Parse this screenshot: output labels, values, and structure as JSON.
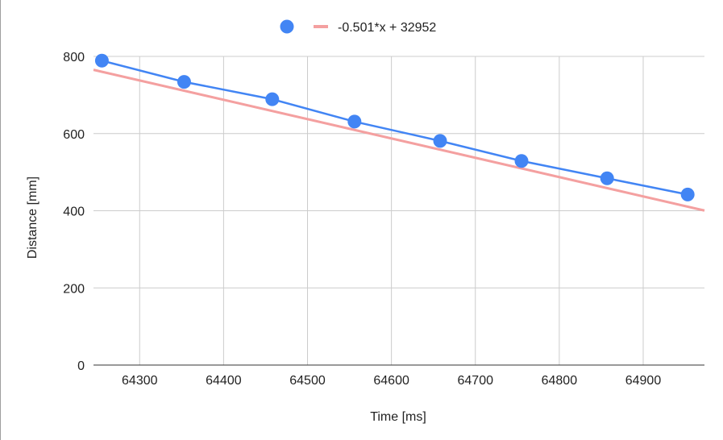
{
  "chart_data": {
    "type": "scatter",
    "title": "",
    "xlabel": "Time [ms]",
    "ylabel": "Distance [mm]",
    "xlim": [
      64245,
      64973
    ],
    "ylim": [
      0,
      800
    ],
    "x_ticks": [
      "64300",
      "64400",
      "64500",
      "64600",
      "64700",
      "64800",
      "64900"
    ],
    "y_ticks": [
      "0",
      "200",
      "400",
      "600",
      "800"
    ],
    "grid": true,
    "legend_position": "top",
    "series": [
      {
        "name": "",
        "color": "#4285f4",
        "x": [
          64255,
          64353,
          64458,
          64556,
          64658,
          64755,
          64857,
          64953
        ],
        "y": [
          789,
          734,
          689,
          631,
          581,
          529,
          484,
          442
        ]
      }
    ],
    "trendline": {
      "label": "-0.501*x + 32952",
      "slope": -0.501,
      "intercept": 32952,
      "color": "#f4a0a0"
    }
  }
}
